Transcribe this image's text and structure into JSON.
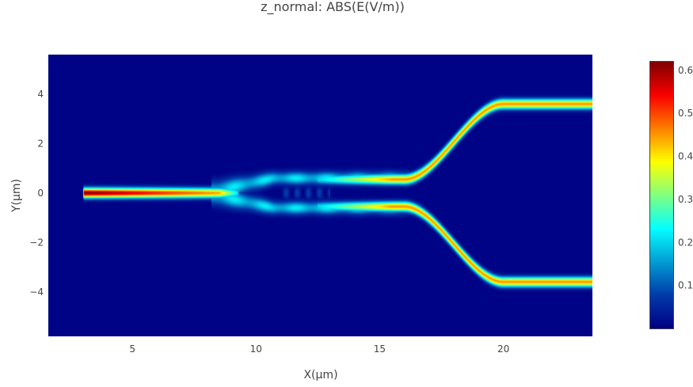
{
  "chart_data": {
    "type": "heatmap",
    "title": "z_normal: ABS(E(V/m))",
    "xlabel": "X(μm)",
    "ylabel": "Y(μm)",
    "xlim": [
      1.6,
      23.6
    ],
    "ylim": [
      -5.8,
      5.6
    ],
    "x_ticks": [
      {
        "value": 5,
        "label": "5"
      },
      {
        "value": 10,
        "label": "10"
      },
      {
        "value": 15,
        "label": "15"
      },
      {
        "value": 20,
        "label": "20"
      }
    ],
    "y_ticks": [
      {
        "value": 4,
        "label": "4"
      },
      {
        "value": 2,
        "label": "2"
      },
      {
        "value": 0,
        "label": "0"
      },
      {
        "value": -2,
        "label": "−2"
      },
      {
        "value": -4,
        "label": "−4"
      }
    ],
    "colorbar": {
      "range": [
        0.0,
        0.62
      ],
      "ticks": [
        {
          "value": 0.1,
          "label": "0.1"
        },
        {
          "value": 0.2,
          "label": "0.2"
        },
        {
          "value": 0.3,
          "label": "0.3"
        },
        {
          "value": 0.4,
          "label": "0.4"
        },
        {
          "value": 0.5,
          "label": "0.5"
        },
        {
          "value": 0.6,
          "label": "0.6"
        }
      ],
      "colorscale": "jet"
    },
    "field": {
      "input_waveguide": {
        "x_start": 3.0,
        "x_end": 8.5,
        "y": 0,
        "peak": 0.62
      },
      "mmi_region": {
        "x_start": 8.5,
        "x_end": 13.0,
        "peak": 0.2
      },
      "output_arms": [
        {
          "y_start": 0.55,
          "y_end": 3.6,
          "bend_start_x": 16.0,
          "bend_end_x": 20.0,
          "x_end": 23.6,
          "peak": 0.45
        },
        {
          "y_start": -0.55,
          "y_end": -3.6,
          "bend_start_x": 16.0,
          "bend_end_x": 20.0,
          "x_end": 23.6,
          "peak": 0.45
        }
      ]
    }
  }
}
